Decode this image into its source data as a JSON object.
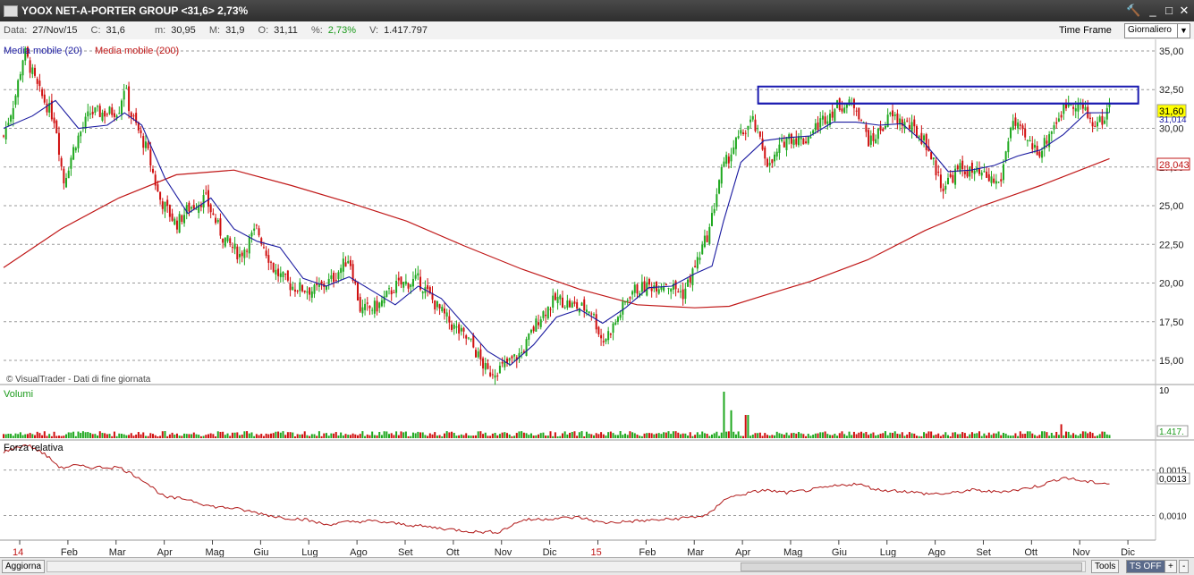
{
  "window": {
    "title": "YOOX NET-A-PORTER GROUP <31,6> 2,73%",
    "buttons": [
      "🔨",
      "_",
      "□",
      "✕"
    ]
  },
  "info": {
    "data_label": "Data:",
    "data": "27/Nov/15",
    "close_label": "C:",
    "close": "31,6",
    "min_label": "m:",
    "min": "30,95",
    "max_label": "M:",
    "max": "31,9",
    "open_label": "O:",
    "open": "31,11",
    "pct_label": "%:",
    "pct": "2,73%",
    "vol_label": "V:",
    "vol": "1.417.797",
    "timeframe_label": "Time Frame",
    "timeframe_value": "Giornaliero"
  },
  "legend": {
    "ma20": "Media mobile (20)",
    "ma200": "Media mobile (200)",
    "watermark": "© VisualTrader - Dati di fine giornata",
    "volumi": "Volumi",
    "forza": "Forza relativa"
  },
  "colors": {
    "up": "#1fa81f",
    "down": "#d01010",
    "ma20": "#1a1aa0",
    "ma200": "#c01818",
    "box": "#1a1ab0",
    "price_tag": "#ffff00"
  },
  "chart_data": [
    {
      "type": "candlestick",
      "panel": "price",
      "ylim": [
        13.5,
        35.75
      ],
      "yticks": [
        "35,00",
        "32,50",
        "30,00",
        "27,50",
        "25,00",
        "22,50",
        "20,00",
        "17,50",
        "15,00"
      ],
      "ytick_values": [
        35,
        32.5,
        30,
        27.5,
        25,
        22.5,
        20,
        17.5,
        15
      ],
      "months": [
        "14",
        "Feb",
        "Mar",
        "Apr",
        "Mag",
        "Giu",
        "Lug",
        "Ago",
        "Set",
        "Ott",
        "Nov",
        "Dic",
        "15",
        "Feb",
        "Mar",
        "Apr",
        "Mag",
        "Giu",
        "Lug",
        "Ago",
        "Set",
        "Ott",
        "Nov",
        "Dic"
      ],
      "close_curve": [
        [
          0,
          29.5
        ],
        [
          0.01,
          32
        ],
        [
          0.018,
          35
        ],
        [
          0.03,
          32.5
        ],
        [
          0.045,
          30.5
        ],
        [
          0.052,
          26.5
        ],
        [
          0.062,
          29
        ],
        [
          0.075,
          31
        ],
        [
          0.09,
          31
        ],
        [
          0.1,
          31.2
        ],
        [
          0.105,
          32.8
        ],
        [
          0.11,
          31
        ],
        [
          0.125,
          28.5
        ],
        [
          0.135,
          25.5
        ],
        [
          0.15,
          23.8
        ],
        [
          0.16,
          24.8
        ],
        [
          0.175,
          25.5
        ],
        [
          0.19,
          23
        ],
        [
          0.205,
          21.8
        ],
        [
          0.22,
          23.5
        ],
        [
          0.235,
          20.8
        ],
        [
          0.25,
          19.8
        ],
        [
          0.27,
          19.5
        ],
        [
          0.285,
          20.2
        ],
        [
          0.3,
          21.7
        ],
        [
          0.31,
          18.2
        ],
        [
          0.325,
          18.5
        ],
        [
          0.34,
          19.8
        ],
        [
          0.36,
          20.2
        ],
        [
          0.375,
          18.6
        ],
        [
          0.39,
          17.2
        ],
        [
          0.405,
          16.2
        ],
        [
          0.42,
          14.2
        ],
        [
          0.432,
          14.5
        ],
        [
          0.45,
          15.5
        ],
        [
          0.465,
          17.8
        ],
        [
          0.48,
          19
        ],
        [
          0.495,
          18.5
        ],
        [
          0.51,
          18.3
        ],
        [
          0.52,
          16.2
        ],
        [
          0.53,
          17.3
        ],
        [
          0.545,
          19.5
        ],
        [
          0.56,
          19.8
        ],
        [
          0.575,
          20
        ],
        [
          0.59,
          19.3
        ],
        [
          0.6,
          21
        ],
        [
          0.613,
          23.5
        ],
        [
          0.622,
          27
        ],
        [
          0.635,
          29
        ],
        [
          0.65,
          30.5
        ],
        [
          0.665,
          27.5
        ],
        [
          0.68,
          29.5
        ],
        [
          0.695,
          29.2
        ],
        [
          0.71,
          30.5
        ],
        [
          0.725,
          31.5
        ],
        [
          0.74,
          31.5
        ],
        [
          0.752,
          29
        ],
        [
          0.77,
          30.8
        ],
        [
          0.785,
          30.2
        ],
        [
          0.8,
          29.2
        ],
        [
          0.815,
          26.2
        ],
        [
          0.83,
          27.4
        ],
        [
          0.85,
          26.9
        ],
        [
          0.865,
          26.4
        ],
        [
          0.875,
          30.5
        ],
        [
          0.89,
          29
        ],
        [
          0.9,
          28.5
        ],
        [
          0.91,
          30
        ],
        [
          0.925,
          31.8
        ],
        [
          0.935,
          31.5
        ],
        [
          0.945,
          30.3
        ],
        [
          0.955,
          30.5
        ],
        [
          0.96,
          31.6
        ]
      ],
      "ma20_curve": [
        [
          0,
          30
        ],
        [
          0.025,
          30.8
        ],
        [
          0.045,
          31.8
        ],
        [
          0.065,
          30
        ],
        [
          0.09,
          30.2
        ],
        [
          0.105,
          31
        ],
        [
          0.12,
          30.2
        ],
        [
          0.14,
          26.8
        ],
        [
          0.16,
          24.5
        ],
        [
          0.18,
          25.5
        ],
        [
          0.2,
          23.5
        ],
        [
          0.22,
          22.7
        ],
        [
          0.24,
          22.3
        ],
        [
          0.26,
          20.3
        ],
        [
          0.28,
          19.8
        ],
        [
          0.3,
          20.4
        ],
        [
          0.32,
          19.5
        ],
        [
          0.34,
          18.6
        ],
        [
          0.36,
          19.8
        ],
        [
          0.38,
          19
        ],
        [
          0.4,
          17.3
        ],
        [
          0.42,
          15.6
        ],
        [
          0.44,
          14.7
        ],
        [
          0.46,
          16
        ],
        [
          0.48,
          17.8
        ],
        [
          0.5,
          18.3
        ],
        [
          0.52,
          17.4
        ],
        [
          0.54,
          18.4
        ],
        [
          0.56,
          19.7
        ],
        [
          0.58,
          19.8
        ],
        [
          0.6,
          20.6
        ],
        [
          0.615,
          21.1
        ],
        [
          0.625,
          24
        ],
        [
          0.64,
          27.8
        ],
        [
          0.66,
          29.2
        ],
        [
          0.68,
          29.4
        ],
        [
          0.7,
          29.5
        ],
        [
          0.72,
          30.4
        ],
        [
          0.74,
          30.4
        ],
        [
          0.76,
          30.2
        ],
        [
          0.78,
          30.3
        ],
        [
          0.8,
          29
        ],
        [
          0.82,
          27.2
        ],
        [
          0.84,
          27.3
        ],
        [
          0.86,
          27.6
        ],
        [
          0.88,
          28.2
        ],
        [
          0.9,
          28.6
        ],
        [
          0.92,
          29.6
        ],
        [
          0.94,
          31
        ],
        [
          0.96,
          31.01
        ]
      ],
      "ma200_curve": [
        [
          0,
          21
        ],
        [
          0.05,
          23.5
        ],
        [
          0.1,
          25.5
        ],
        [
          0.15,
          27
        ],
        [
          0.2,
          27.3
        ],
        [
          0.25,
          26.3
        ],
        [
          0.3,
          25.2
        ],
        [
          0.35,
          24
        ],
        [
          0.4,
          22.4
        ],
        [
          0.45,
          20.9
        ],
        [
          0.5,
          19.6
        ],
        [
          0.55,
          18.6
        ],
        [
          0.6,
          18.4
        ],
        [
          0.63,
          18.5
        ],
        [
          0.66,
          19.2
        ],
        [
          0.7,
          20.1
        ],
        [
          0.75,
          21.5
        ],
        [
          0.8,
          23.4
        ],
        [
          0.85,
          25
        ],
        [
          0.9,
          26.3
        ],
        [
          0.96,
          28.04
        ]
      ],
      "box": {
        "x0": 0.655,
        "x1": 0.985,
        "y0": 31.6,
        "y1": 32.7
      },
      "last_price": "31,60",
      "ma20_value": "31,014",
      "ma200_value": "28,043"
    },
    {
      "type": "bar",
      "panel": "volume",
      "ytick": "10",
      "last_value": "1.417.",
      "spikes": [
        [
          0.625,
          10
        ],
        [
          0.632,
          6
        ],
        [
          0.645,
          5
        ],
        [
          0.918,
          3
        ]
      ]
    },
    {
      "type": "line",
      "panel": "relative_strength",
      "yticks": [
        "0,0015",
        "0,0010"
      ],
      "ytick_values": [
        0.0015,
        0.001
      ],
      "ylim": [
        0.00075,
        0.0018
      ],
      "last_value": "0,0013",
      "curve": [
        [
          0,
          0.0017
        ],
        [
          0.02,
          0.00178
        ],
        [
          0.035,
          0.00168
        ],
        [
          0.05,
          0.00152
        ],
        [
          0.06,
          0.00155
        ],
        [
          0.075,
          0.00153
        ],
        [
          0.1,
          0.00153
        ],
        [
          0.12,
          0.0014
        ],
        [
          0.14,
          0.0012
        ],
        [
          0.16,
          0.00118
        ],
        [
          0.18,
          0.0011
        ],
        [
          0.2,
          0.00108
        ],
        [
          0.22,
          0.00103
        ],
        [
          0.24,
          0.00098
        ],
        [
          0.26,
          0.00096
        ],
        [
          0.28,
          0.0009
        ],
        [
          0.3,
          0.00093
        ],
        [
          0.32,
          0.00094
        ],
        [
          0.35,
          0.0009
        ],
        [
          0.38,
          0.00086
        ],
        [
          0.41,
          0.00082
        ],
        [
          0.43,
          0.00082
        ],
        [
          0.45,
          0.00095
        ],
        [
          0.48,
          0.00097
        ],
        [
          0.5,
          0.00098
        ],
        [
          0.52,
          0.00092
        ],
        [
          0.55,
          0.00094
        ],
        [
          0.58,
          0.00096
        ],
        [
          0.61,
          0.001
        ],
        [
          0.615,
          0.00104
        ],
        [
          0.625,
          0.00118
        ],
        [
          0.64,
          0.00123
        ],
        [
          0.66,
          0.00128
        ],
        [
          0.68,
          0.00125
        ],
        [
          0.7,
          0.00128
        ],
        [
          0.72,
          0.00132
        ],
        [
          0.74,
          0.00135
        ],
        [
          0.76,
          0.00128
        ],
        [
          0.78,
          0.00127
        ],
        [
          0.8,
          0.00124
        ],
        [
          0.82,
          0.00124
        ],
        [
          0.84,
          0.00128
        ],
        [
          0.86,
          0.00126
        ],
        [
          0.88,
          0.00128
        ],
        [
          0.9,
          0.00133
        ],
        [
          0.92,
          0.00142
        ],
        [
          0.94,
          0.00137
        ],
        [
          0.96,
          0.00135
        ]
      ]
    }
  ],
  "bottom": {
    "refresh": "Aggiorna",
    "tools": "Tools",
    "ts": "TS OFF",
    "plus": "+",
    "minus": "-"
  }
}
